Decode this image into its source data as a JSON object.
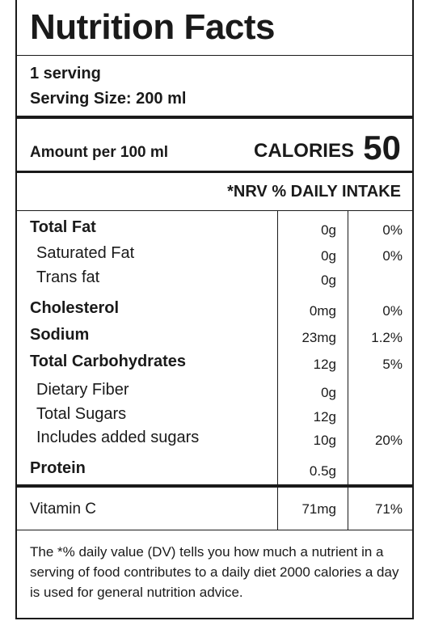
{
  "label": {
    "title": "Nutrition Facts",
    "servings": "1 serving",
    "serving_size": "Serving Size: 200 ml",
    "amount_per": "Amount per 100 ml",
    "calories_label": "CALORIES",
    "calories_value": "50",
    "nrv_header": "*NRV % DAILY INTAKE",
    "nutrients": [
      {
        "name": "Total Fat",
        "amount": "0g",
        "percent": "0%"
      },
      {
        "name": "Saturated Fat",
        "amount": "0g",
        "percent": "0%"
      },
      {
        "name": "Trans fat",
        "amount": "0g",
        "percent": ""
      },
      {
        "name": "Cholesterol",
        "amount": "0mg",
        "percent": "0%"
      },
      {
        "name": "Sodium",
        "amount": "23mg",
        "percent": "1.2%"
      },
      {
        "name": "Total Carbohydrates",
        "amount": "12g",
        "percent": "5%"
      },
      {
        "name": "Dietary Fiber",
        "amount": "0g",
        "percent": ""
      },
      {
        "name": "Total Sugars",
        "amount": "12g",
        "percent": ""
      },
      {
        "name": "Includes added sugars",
        "amount": "10g",
        "percent": "20%"
      },
      {
        "name": "Protein",
        "amount": "0.5g",
        "percent": ""
      }
    ],
    "vitamin": {
      "name": "Vitamin C",
      "amount": "71mg",
      "percent": "71%"
    },
    "footnote": "The *% daily value (DV) tells you how much a nutrient in a serving of food contributes to a daily diet 2000 calories a day is used for general nutrition advice."
  }
}
